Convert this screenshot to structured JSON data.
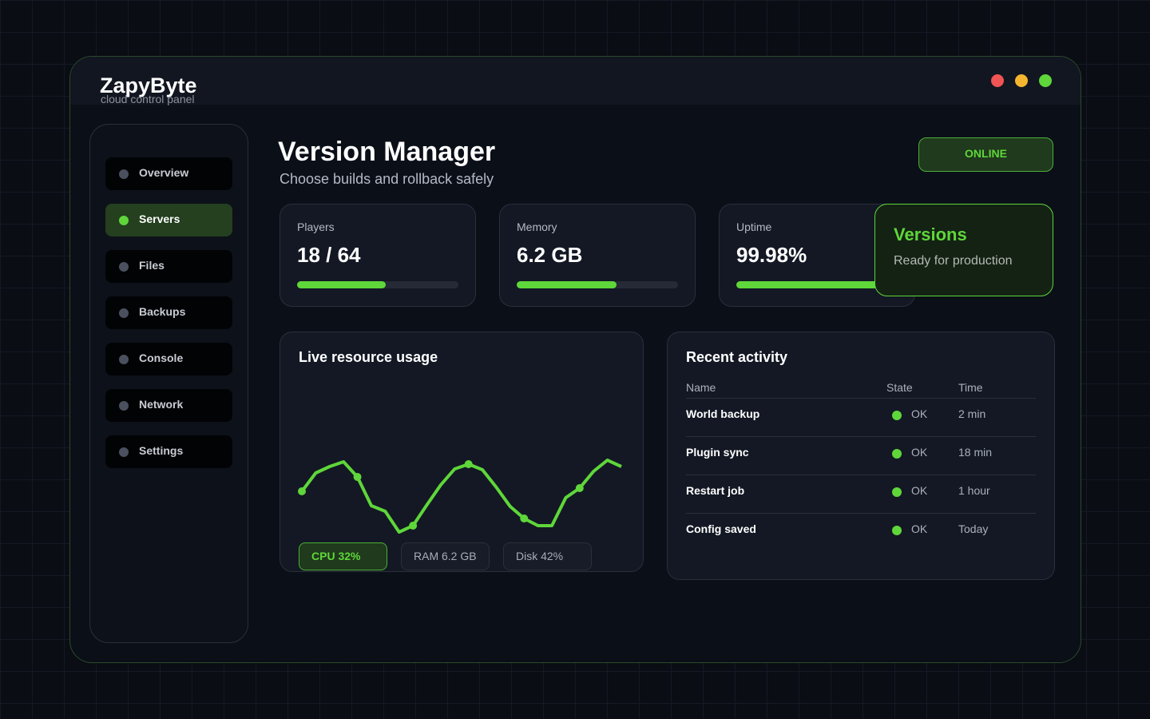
{
  "app": {
    "brand": "ZapyByte",
    "tagline": "cloud control panel"
  },
  "nav": {
    "items": [
      "Overview",
      "Servers",
      "Files",
      "Backups",
      "Console",
      "Network",
      "Settings"
    ],
    "active_index": 1
  },
  "header": {
    "title": "Version Manager",
    "subtitle": "Choose builds and rollback safely",
    "status": "ONLINE"
  },
  "stats": [
    {
      "label": "Players",
      "value": "18 / 64",
      "fill": 55
    },
    {
      "label": "Memory",
      "value": "6.2 GB",
      "fill": 62
    },
    {
      "label": "Uptime",
      "value": "99.98%",
      "fill": 90
    }
  ],
  "popup": {
    "title": "Versions",
    "text": "Ready for production"
  },
  "usage_chart": {
    "type": "line",
    "title": "Live resource usage",
    "color": "#5fd63a",
    "values": [
      32.5,
      44,
      48,
      51,
      41.5,
      23.5,
      20,
      7,
      11,
      24,
      36.5,
      46.5,
      49.5,
      46,
      35,
      23,
      15.5,
      11,
      11,
      28.5,
      34.5,
      45,
      52,
      48
    ],
    "chips": [
      "CPU 32%",
      "RAM 6.2 GB",
      "Disk 42%"
    ]
  },
  "activity": {
    "title": "Recent activity",
    "columns": [
      "Name",
      "State",
      "Time"
    ],
    "rows": [
      [
        "World backup",
        "OK",
        "2 min"
      ],
      [
        "Plugin sync",
        "OK",
        "18 min"
      ],
      [
        "Restart job",
        "OK",
        "1 hour"
      ],
      [
        "Config saved",
        "OK",
        "Today"
      ]
    ]
  }
}
